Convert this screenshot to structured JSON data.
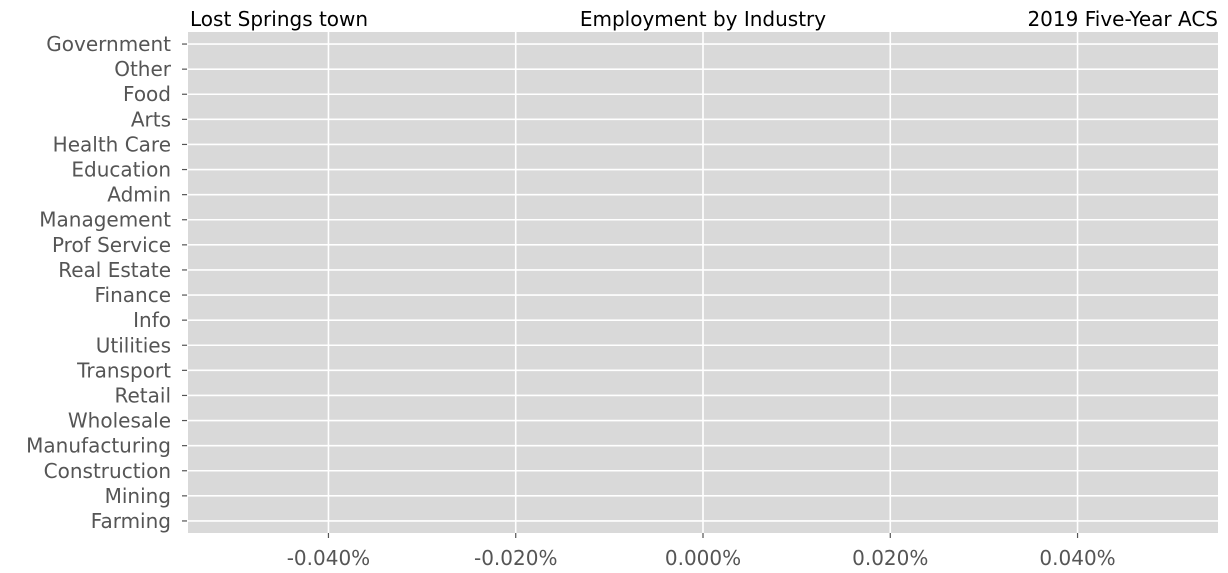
{
  "chart_data": {
    "type": "bar",
    "orientation": "horizontal",
    "title": "Employment by Industry",
    "left_title": "Lost Springs town",
    "right_title": "2019 Five-Year ACS",
    "categories": [
      "Farming",
      "Mining",
      "Construction",
      "Manufacturing",
      "Wholesale",
      "Retail",
      "Transport",
      "Utilities",
      "Info",
      "Finance",
      "Real Estate",
      "Prof Service",
      "Management",
      "Admin",
      "Education",
      "Health Care",
      "Arts",
      "Food",
      "Other",
      "Government"
    ],
    "values": [
      0,
      0,
      0,
      0,
      0,
      0,
      0,
      0,
      0,
      0,
      0,
      0,
      0,
      0,
      0,
      0,
      0,
      0,
      0,
      0
    ],
    "xlim": [
      -0.055,
      0.055
    ],
    "x_ticks": [
      -0.04,
      -0.02,
      0.0,
      0.02,
      0.04
    ],
    "x_tick_labels": [
      "-0.040%",
      "-0.020%",
      "0.000%",
      "0.020%",
      "0.040%"
    ],
    "xlabel": "",
    "ylabel": "",
    "grid": true,
    "colors": {
      "plot_background": "#d9d9d9",
      "grid": "#ffffff",
      "tick_label": "#555555",
      "title": "#000000"
    }
  }
}
